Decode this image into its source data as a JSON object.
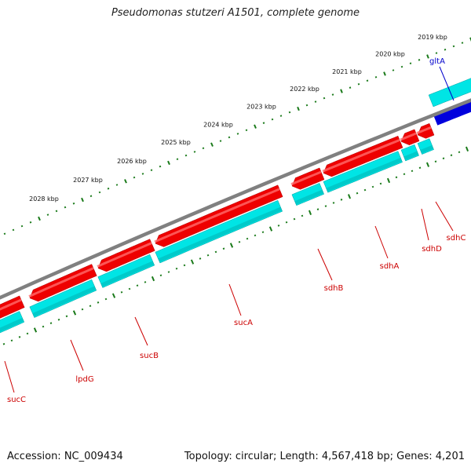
{
  "title": "Pseudomonas stutzeri A1501, complete genome",
  "footer": {
    "accession": "Accession: NC_009434",
    "summary": "Topology: circular; Length: 4,567,418 bp; Genes: 4,201"
  },
  "colors": {
    "backbone": "#808080",
    "gene_forward": "#0000dd",
    "gene_reverse": "#ee0000",
    "cds": "#00e5e5",
    "tick": "#1a7a1a",
    "label_red": "#cc0000",
    "label_blue": "#0000cc"
  },
  "kbp_labels": [
    "2019 kbp",
    "2020 kbp",
    "2021 kbp",
    "2022 kbp",
    "2023 kbp",
    "2024 kbp",
    "2025 kbp",
    "2026 kbp",
    "2027 kbp",
    "2028 kbp"
  ],
  "genes": [
    {
      "name": "gltA",
      "strand": "forward"
    },
    {
      "name": "sdhC",
      "strand": "reverse"
    },
    {
      "name": "sdhD",
      "strand": "reverse"
    },
    {
      "name": "sdhA",
      "strand": "reverse"
    },
    {
      "name": "sdhB",
      "strand": "reverse"
    },
    {
      "name": "sucA",
      "strand": "reverse"
    },
    {
      "name": "sucB",
      "strand": "reverse"
    },
    {
      "name": "lpdG",
      "strand": "reverse"
    },
    {
      "name": "sucC",
      "strand": "reverse"
    }
  ]
}
